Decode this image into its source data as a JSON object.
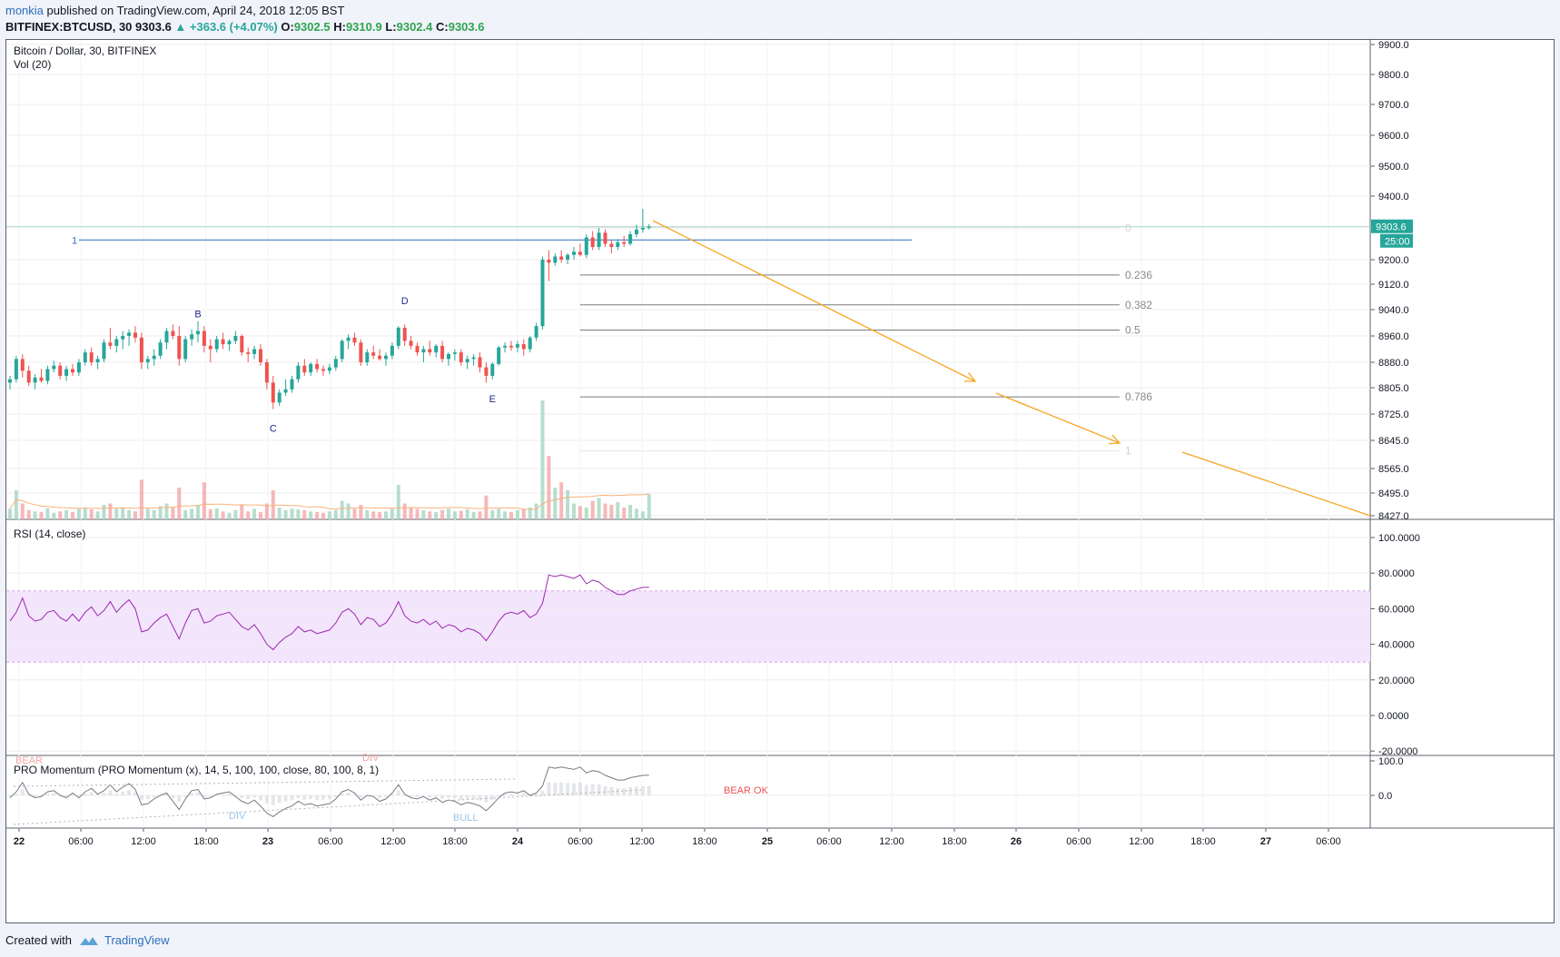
{
  "header": {
    "author": "monkia",
    "published_text": " published on TradingView.com, April 24, 2018 12:05 BST",
    "symbol": "BITFINEX:BTCUSD, 30",
    "last": "9303.6",
    "change": "▲ +363.6 (+4.07%)",
    "o_label": "O:",
    "o_value": "9302.5",
    "h_label": "H:",
    "h_value": "9310.9",
    "l_label": "L:",
    "l_value": "9302.4",
    "c_label": "C:",
    "c_value": "9303.6"
  },
  "footer": {
    "created_with": "Created with",
    "brand": "TradingView"
  },
  "colors": {
    "up": "#26a69a",
    "down": "#ef5350",
    "vol_up": "#a5d6c1",
    "vol_down": "#f4a6a6",
    "arrow": "#f5a623",
    "rsi_line": "#9c27b0",
    "rsi_band": "#f3e5fb",
    "hline": "#2a6ebb"
  },
  "chart_data": [
    {
      "type": "candlestick",
      "title": "Bitcoin / Dollar, 30, BITFINEX",
      "indicator_label": "Vol (20)",
      "price_axis_ticks": [
        "9900.0",
        "9800.0",
        "9700.0",
        "9600.0",
        "9500.0",
        "9400.0",
        "9200.0",
        "9120.0",
        "9040.0",
        "8960.0",
        "8880.0",
        "8805.0",
        "8725.0",
        "8645.0",
        "8565.0",
        "8495.0",
        "8427.0"
      ],
      "ylim": [
        8427,
        9940
      ],
      "last_price_label": "9303.6",
      "countdown_label": "25:00",
      "time_axis_labels": [
        "22",
        "06:00",
        "12:00",
        "18:00",
        "23",
        "06:00",
        "12:00",
        "18:00",
        "24",
        "06:00",
        "12:00",
        "18:00",
        "25",
        "06:00",
        "12:00",
        "18:00",
        "26",
        "06:00",
        "12:00",
        "18:00",
        "27",
        "06:00"
      ],
      "horizontal_line_label": "1",
      "pattern_points": [
        {
          "label": "B",
          "index": 30,
          "price": 9000
        },
        {
          "label": "C",
          "index": 42,
          "price": 8710
        },
        {
          "label": "D",
          "index": 63,
          "price": 9040
        },
        {
          "label": "E",
          "index": 77,
          "price": 8800
        }
      ],
      "fib_levels": [
        {
          "label": "0",
          "price": 9300
        },
        {
          "label": "0.236",
          "price": 9150
        },
        {
          "label": "0.382",
          "price": 9055
        },
        {
          "label": "0.5",
          "price": 8978
        },
        {
          "label": "0.786",
          "price": 8777
        },
        {
          "label": "1",
          "price": 8615
        }
      ],
      "candles": [
        [
          8820,
          8840,
          8800,
          8830
        ],
        [
          8830,
          8900,
          8820,
          8890
        ],
        [
          8890,
          8905,
          8835,
          8855
        ],
        [
          8855,
          8870,
          8810,
          8820
        ],
        [
          8820,
          8845,
          8800,
          8835
        ],
        [
          8835,
          8860,
          8820,
          8825
        ],
        [
          8825,
          8870,
          8815,
          8860
        ],
        [
          8860,
          8885,
          8850,
          8870
        ],
        [
          8870,
          8880,
          8830,
          8840
        ],
        [
          8840,
          8870,
          8825,
          8860
        ],
        [
          8860,
          8875,
          8840,
          8850
        ],
        [
          8850,
          8890,
          8840,
          8880
        ],
        [
          8880,
          8920,
          8870,
          8910
        ],
        [
          8910,
          8925,
          8870,
          8880
        ],
        [
          8880,
          8900,
          8860,
          8890
        ],
        [
          8890,
          8950,
          8880,
          8940
        ],
        [
          8940,
          8985,
          8920,
          8930
        ],
        [
          8930,
          8960,
          8910,
          8950
        ],
        [
          8950,
          8975,
          8920,
          8960
        ],
        [
          8960,
          8980,
          8930,
          8970
        ],
        [
          8970,
          8990,
          8940,
          8955
        ],
        [
          8955,
          8970,
          8860,
          8880
        ],
        [
          8880,
          8900,
          8860,
          8890
        ],
        [
          8890,
          8920,
          8870,
          8900
        ],
        [
          8900,
          8950,
          8890,
          8940
        ],
        [
          8940,
          8985,
          8920,
          8975
        ],
        [
          8975,
          8995,
          8950,
          8960
        ],
        [
          8960,
          8990,
          8870,
          8890
        ],
        [
          8890,
          8960,
          8880,
          8950
        ],
        [
          8950,
          8980,
          8930,
          8965
        ],
        [
          8965,
          9005,
          8940,
          8975
        ],
        [
          8975,
          8990,
          8910,
          8930
        ],
        [
          8930,
          8950,
          8880,
          8920
        ],
        [
          8920,
          8960,
          8910,
          8950
        ],
        [
          8950,
          8970,
          8920,
          8935
        ],
        [
          8935,
          8950,
          8915,
          8945
        ],
        [
          8945,
          8975,
          8935,
          8960
        ],
        [
          8960,
          8965,
          8900,
          8910
        ],
        [
          8910,
          8925,
          8880,
          8905
        ],
        [
          8905,
          8930,
          8890,
          8920
        ],
        [
          8920,
          8935,
          8870,
          8880
        ],
        [
          8880,
          8890,
          8800,
          8820
        ],
        [
          8820,
          8840,
          8740,
          8760
        ],
        [
          8760,
          8800,
          8750,
          8790
        ],
        [
          8790,
          8830,
          8780,
          8800
        ],
        [
          8800,
          8840,
          8790,
          8830
        ],
        [
          8830,
          8880,
          8820,
          8870
        ],
        [
          8870,
          8890,
          8840,
          8850
        ],
        [
          8850,
          8880,
          8840,
          8875
        ],
        [
          8875,
          8890,
          8850,
          8860
        ],
        [
          8860,
          8870,
          8840,
          8855
        ],
        [
          8855,
          8875,
          8845,
          8865
        ],
        [
          8865,
          8900,
          8855,
          8890
        ],
        [
          8890,
          8950,
          8880,
          8945
        ],
        [
          8945,
          8965,
          8920,
          8955
        ],
        [
          8955,
          8970,
          8930,
          8940
        ],
        [
          8940,
          8950,
          8870,
          8880
        ],
        [
          8880,
          8920,
          8870,
          8910
        ],
        [
          8910,
          8930,
          8890,
          8900
        ],
        [
          8900,
          8920,
          8885,
          8890
        ],
        [
          8890,
          8910,
          8870,
          8900
        ],
        [
          8900,
          8940,
          8890,
          8930
        ],
        [
          8930,
          8990,
          8920,
          8985
        ],
        [
          8985,
          8995,
          8930,
          8945
        ],
        [
          8945,
          8960,
          8920,
          8930
        ],
        [
          8930,
          8940,
          8900,
          8910
        ],
        [
          8910,
          8930,
          8880,
          8920
        ],
        [
          8920,
          8945,
          8900,
          8910
        ],
        [
          8910,
          8935,
          8895,
          8930
        ],
        [
          8930,
          8945,
          8880,
          8890
        ],
        [
          8890,
          8910,
          8870,
          8905
        ],
        [
          8905,
          8920,
          8885,
          8910
        ],
        [
          8910,
          8920,
          8870,
          8880
        ],
        [
          8880,
          8900,
          8860,
          8890
        ],
        [
          8890,
          8905,
          8870,
          8895
        ],
        [
          8895,
          8910,
          8850,
          8865
        ],
        [
          8865,
          8880,
          8820,
          8840
        ],
        [
          8840,
          8880,
          8830,
          8875
        ],
        [
          8875,
          8930,
          8870,
          8925
        ],
        [
          8925,
          8940,
          8910,
          8930
        ],
        [
          8930,
          8945,
          8915,
          8925
        ],
        [
          8925,
          8945,
          8910,
          8935
        ],
        [
          8935,
          8950,
          8900,
          8920
        ],
        [
          8920,
          8960,
          8910,
          8955
        ],
        [
          8955,
          9000,
          8945,
          8990
        ],
        [
          8990,
          9210,
          8980,
          9200
        ],
        [
          9200,
          9230,
          9130,
          9190
        ],
        [
          9190,
          9220,
          9180,
          9210
        ],
        [
          9210,
          9230,
          9190,
          9200
        ],
        [
          9200,
          9220,
          9185,
          9215
        ],
        [
          9215,
          9240,
          9200,
          9225
        ],
        [
          9225,
          9250,
          9210,
          9215
        ],
        [
          9215,
          9280,
          9205,
          9270
        ],
        [
          9270,
          9290,
          9230,
          9240
        ],
        [
          9240,
          9300,
          9230,
          9285
        ],
        [
          9285,
          9295,
          9240,
          9250
        ],
        [
          9250,
          9260,
          9220,
          9240
        ],
        [
          9240,
          9265,
          9230,
          9255
        ],
        [
          9255,
          9275,
          9240,
          9250
        ],
        [
          9250,
          9290,
          9245,
          9280
        ],
        [
          9280,
          9310,
          9270,
          9295
        ],
        [
          9295,
          9360,
          9285,
          9300
        ],
        [
          9300,
          9312,
          9295,
          9304
        ]
      ],
      "volumes": [
        40,
        110,
        60,
        35,
        30,
        28,
        42,
        25,
        30,
        35,
        28,
        40,
        45,
        38,
        30,
        55,
        60,
        40,
        45,
        35,
        30,
        150,
        40,
        35,
        50,
        60,
        45,
        120,
        35,
        40,
        55,
        140,
        38,
        42,
        30,
        25,
        35,
        55,
        30,
        40,
        28,
        60,
        110,
        45,
        35,
        40,
        38,
        35,
        30,
        28,
        25,
        30,
        35,
        70,
        60,
        40,
        55,
        35,
        30,
        28,
        30,
        40,
        130,
        60,
        45,
        40,
        35,
        30,
        28,
        35,
        40,
        30,
        32,
        38,
        28,
        30,
        90,
        35,
        40,
        30,
        28,
        35,
        40,
        45,
        60,
        450,
        240,
        120,
        140,
        110,
        60,
        50,
        45,
        70,
        80,
        60,
        55,
        65,
        45,
        55,
        40,
        30,
        95
      ],
      "rsi": {
        "label": "RSI (14, close)",
        "axis_ticks": [
          "100.0000",
          "80.0000",
          "60.0000",
          "40.0000",
          "20.0000",
          "0.0000",
          "-20.0000"
        ],
        "band": [
          30,
          70
        ],
        "values": [
          53,
          58,
          66,
          56,
          53,
          54,
          58,
          59,
          55,
          53,
          57,
          53,
          58,
          61,
          56,
          59,
          64,
          58,
          62,
          65,
          60,
          47,
          48,
          52,
          55,
          57,
          50,
          43,
          52,
          59,
          60,
          52,
          53,
          56,
          57,
          58,
          54,
          50,
          48,
          51,
          46,
          40,
          37,
          41,
          44,
          46,
          50,
          47,
          48,
          46,
          47,
          48,
          52,
          58,
          60,
          57,
          51,
          55,
          54,
          50,
          52,
          57,
          64,
          56,
          53,
          52,
          54,
          51,
          53,
          49,
          51,
          50,
          47,
          49,
          48,
          46,
          42,
          47,
          53,
          57,
          58,
          57,
          59,
          55,
          57,
          63,
          79,
          78,
          79,
          78,
          77,
          79,
          74,
          76,
          75,
          72,
          70,
          68,
          68,
          70,
          71,
          72,
          72
        ]
      },
      "momentum": {
        "label": "PRO Momentum (PRO Momentum (x), 14, 5, 100, 100, close, 80, 100, 8, 1)",
        "axis_ticks": [
          "100.0",
          "0.0"
        ],
        "annotations": [
          "BEAR",
          "DIV",
          "DIV",
          "BULL",
          "BEAR OK"
        ]
      }
    }
  ]
}
